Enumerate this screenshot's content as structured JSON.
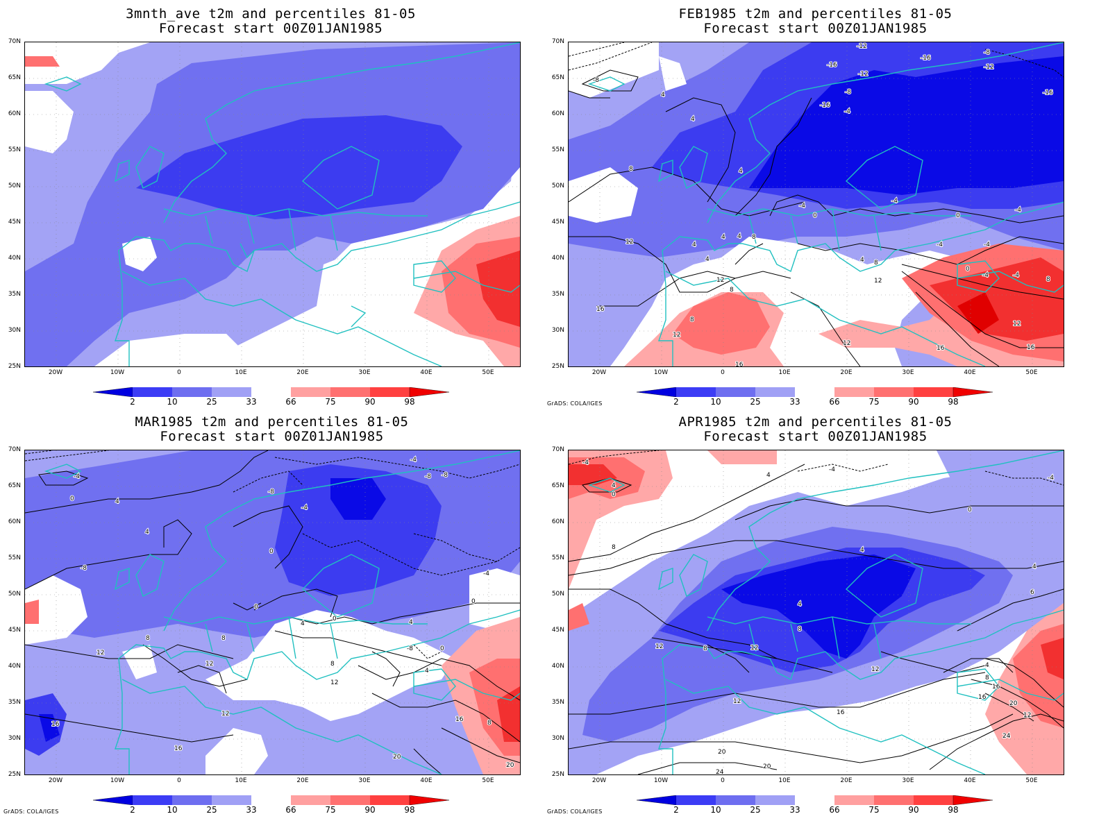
{
  "panels": [
    {
      "id": "p1",
      "title_line1": "3mnth_ave t2m and percentiles 81-05",
      "title_line2": "Forecast start 00Z01JAN1985",
      "credit": ""
    },
    {
      "id": "p2",
      "title_line1": "FEB1985 t2m and percentiles 81-05",
      "title_line2": "Forecast start 00Z01JAN1985",
      "credit": "GrADS: COLA/IGES"
    },
    {
      "id": "p3",
      "title_line1": "MAR1985 t2m and percentiles 81-05",
      "title_line2": "Forecast start 00Z01JAN1985",
      "credit": "GrADS: COLA/IGES"
    },
    {
      "id": "p4",
      "title_line1": "APR1985 t2m and percentiles 81-05",
      "title_line2": "Forecast start 00Z01JAN1985",
      "credit": "GrADS: COLA/IGES"
    }
  ],
  "axes": {
    "lat_labels": [
      "70N",
      "65N",
      "60N",
      "55N",
      "50N",
      "45N",
      "40N",
      "35N",
      "30N",
      "25N"
    ],
    "lon_labels": [
      "20W",
      "10W",
      "0",
      "10E",
      "20E",
      "30E",
      "40E",
      "50E"
    ]
  },
  "colorbar": {
    "labels": [
      "2",
      "10",
      "25",
      "33",
      "66",
      "75",
      "90",
      "98"
    ],
    "colors": [
      "#0000e0",
      "#3c3cf5",
      "#6e6ef0",
      "#a0a0f5",
      "#ffffff",
      "#ffa0a0",
      "#ff7070",
      "#ff4040",
      "#f00000"
    ]
  },
  "colors": {
    "coast": "#20c0c0",
    "contour": "#000000",
    "blue_light": "#a3a3f5",
    "blue_mid": "#7070f0",
    "blue_dark": "#3c3cf0",
    "blue_deep": "#0a0ae6",
    "red_light": "#ffa8a8",
    "red_mid": "#ff7070",
    "red_dark": "#f23030"
  },
  "contour_labels": {
    "p2": [
      "-12",
      "-16",
      "-16",
      "-12",
      "-8",
      "-4",
      "-8",
      "-12",
      "-16",
      "-8",
      "4",
      "4",
      "4",
      "8",
      "4",
      "-4",
      "0",
      "-4",
      "-4",
      "12",
      "4",
      "4",
      "8",
      "4",
      "-4",
      "4",
      "8",
      "12",
      "12",
      "8",
      "0",
      "-4",
      "-4",
      "8",
      "12",
      "16",
      "8",
      "12",
      "16",
      "16",
      "12",
      "16",
      "-4",
      "0",
      "-16"
    ],
    "p3": [
      "-4",
      "0",
      "4",
      "-8",
      "-4",
      "-8",
      "-8",
      "0",
      "4",
      "-8",
      "-4",
      "0",
      "0",
      "0",
      "4",
      "8",
      "12",
      "12",
      "12",
      "16",
      "16",
      "8",
      "4",
      "-8",
      "0",
      "4",
      "8",
      "12",
      "16",
      "8",
      "-4",
      "20",
      "20"
    ],
    "p4": [
      "-4",
      "0",
      "4",
      "-4",
      "8",
      "4",
      "0",
      "4",
      "4",
      "4",
      "6",
      "12",
      "8",
      "12",
      "8",
      "12",
      "16",
      "12",
      "16",
      "20",
      "20",
      "24",
      "4",
      "8",
      "12",
      "16",
      "20",
      "24",
      "-4"
    ]
  }
}
